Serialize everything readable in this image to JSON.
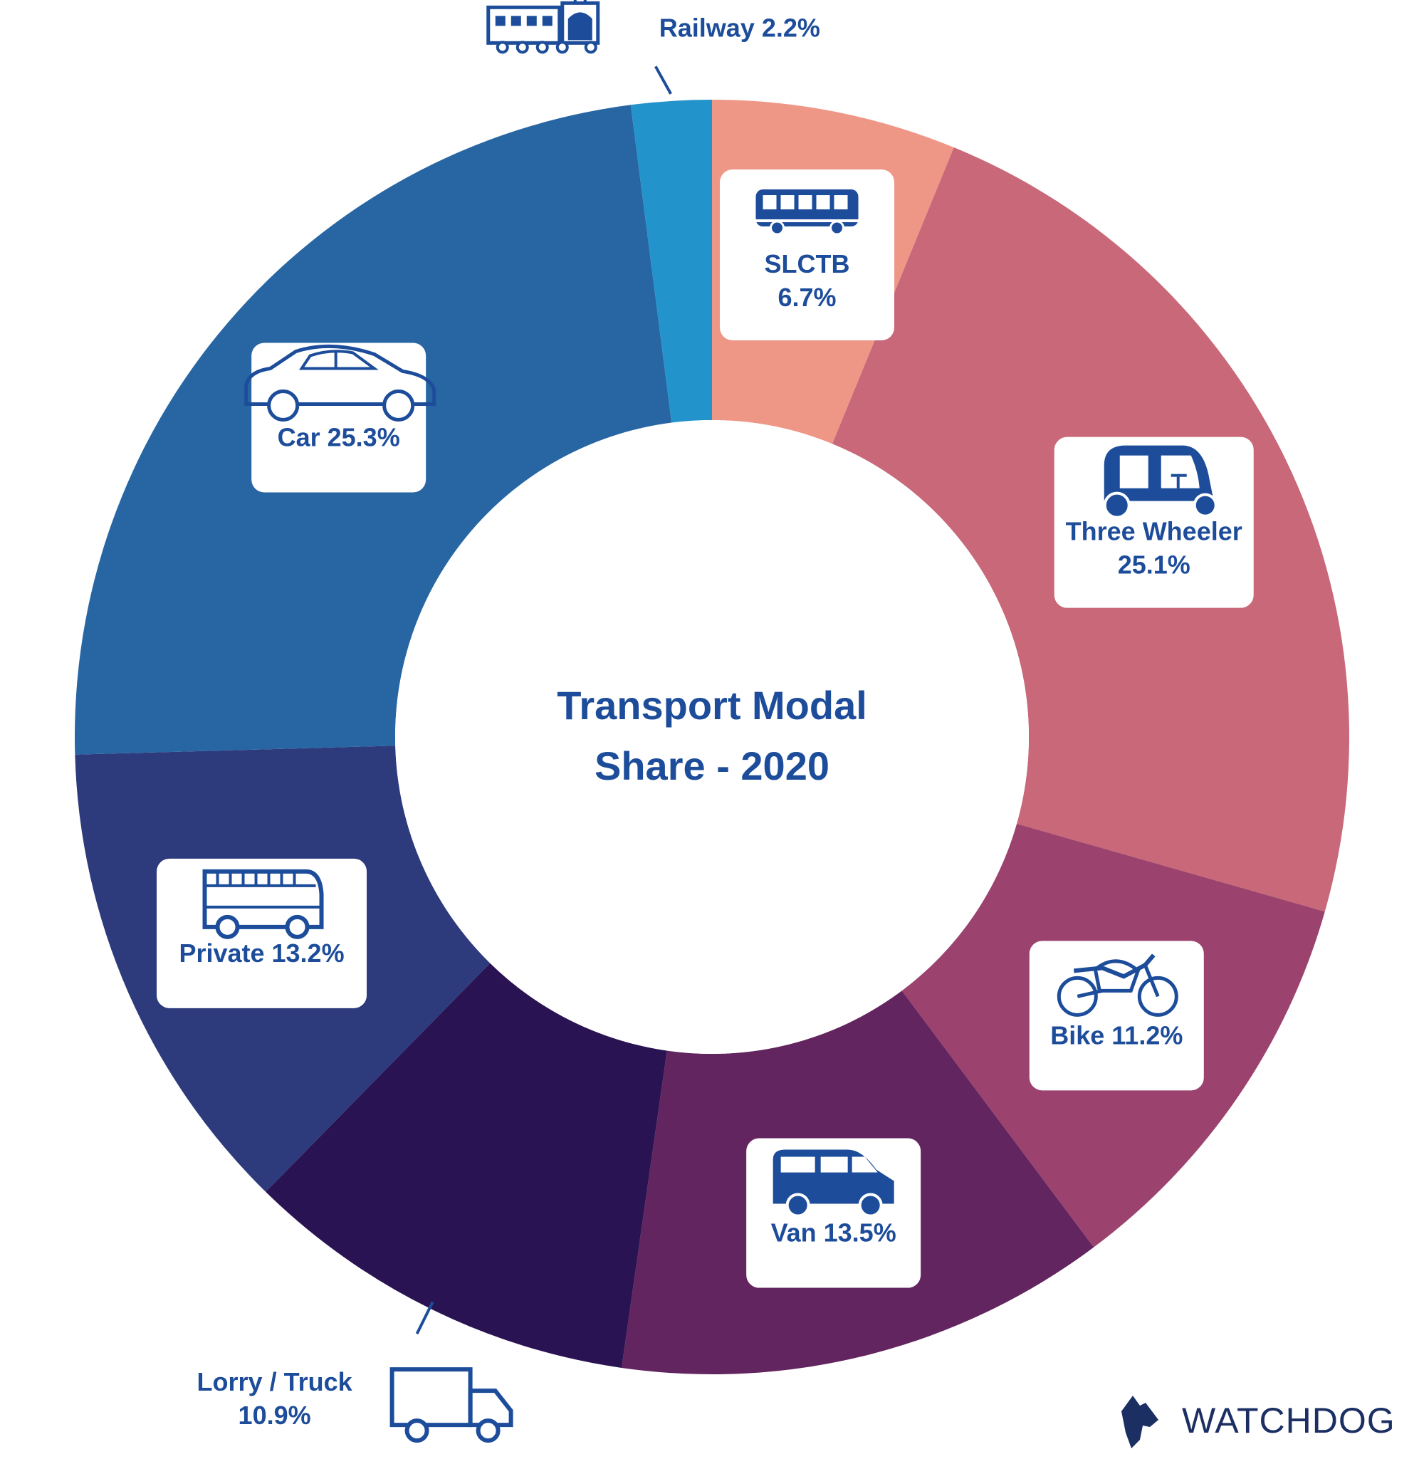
{
  "chart_data": {
    "type": "pie",
    "variant": "donut",
    "title_lines": [
      "Transport Modal",
      "Share - 2020"
    ],
    "unit": "%",
    "slices": [
      {
        "name": "SLCTB",
        "value": 6.7,
        "color": "#ef9787",
        "icon": "bus-icon",
        "label_lines": [
          "SLCTB",
          "6.7%"
        ]
      },
      {
        "name": "Three Wheeler",
        "value": 25.1,
        "color": "#c86878",
        "icon": "three-wheeler-icon",
        "label_lines": [
          "Three Wheeler",
          "25.1%"
        ]
      },
      {
        "name": "Bike",
        "value": 11.2,
        "color": "#9b426e",
        "icon": "motorbike-icon",
        "label_lines": [
          "Bike 11.2%"
        ]
      },
      {
        "name": "Van",
        "value": 13.5,
        "color": "#63255f",
        "icon": "van-icon",
        "label_lines": [
          "Van 13.5%"
        ]
      },
      {
        "name": "Lorry / Truck",
        "value": 10.9,
        "color": "#2a1352",
        "icon": "truck-icon",
        "label_lines": [
          "Lorry / Truck",
          "10.9%"
        ]
      },
      {
        "name": "Private",
        "value": 13.2,
        "color": "#2d3a7c",
        "icon": "coach-bus-icon",
        "label_lines": [
          "Private 13.2%"
        ]
      },
      {
        "name": "Car",
        "value": 25.3,
        "color": "#2766a3",
        "icon": "car-icon",
        "label_lines": [
          "Car 25.3%"
        ]
      },
      {
        "name": "Railway",
        "value": 2.2,
        "color": "#2393cc",
        "icon": "train-icon",
        "label_lines": [
          "Railway 2.2%"
        ]
      }
    ],
    "text_color": "#1d4d9a"
  },
  "brand": {
    "name": "WATCHDOG",
    "logo_icon": "dog-head-icon",
    "color": "#1c2f63"
  }
}
